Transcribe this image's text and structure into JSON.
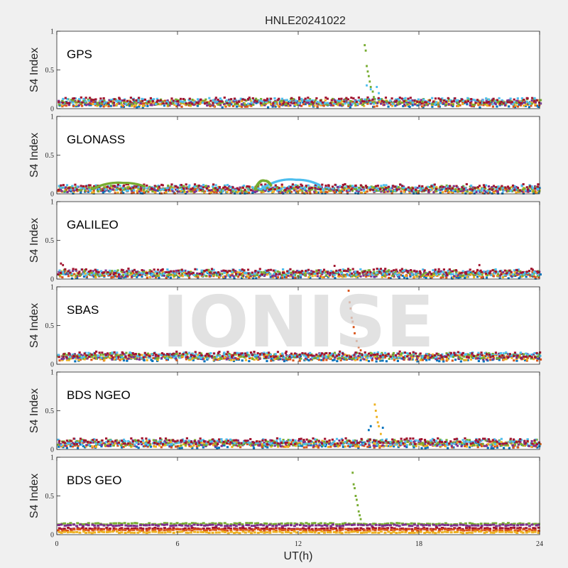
{
  "title": "HNLE20241022",
  "watermark": "IONISE",
  "xlabel": "UT(h)",
  "xlim": [
    0,
    24
  ],
  "xticks": [
    0,
    6,
    12,
    18,
    24
  ],
  "ylim": [
    0,
    1
  ],
  "yticks": [
    "0",
    "0.5",
    "1"
  ],
  "series_colors": [
    "#0072BD",
    "#D95319",
    "#EDB120",
    "#7E2F8E",
    "#77AC30",
    "#4DBEEE",
    "#A2142F"
  ],
  "chart_data": [
    {
      "type": "scatter",
      "panel_label": "GPS",
      "ylabel": "S4 Index",
      "ylim": [
        0,
        1
      ],
      "baseline": 0.08,
      "spikes": [
        {
          "x": [
            15.3,
            15.35,
            15.4,
            15.45,
            15.5,
            15.55,
            15.6,
            15.7,
            15.75,
            15.8
          ],
          "y": [
            0.82,
            0.75,
            0.55,
            0.48,
            0.42,
            0.35,
            0.28,
            0.22,
            0.15,
            0.12
          ],
          "color": "#77AC30"
        },
        {
          "x": [
            15.4,
            15.6,
            15.9,
            16.0
          ],
          "y": [
            0.3,
            0.25,
            0.28,
            0.2
          ],
          "color": "#4DBEEE"
        }
      ]
    },
    {
      "type": "scatter",
      "panel_label": "GLONASS",
      "ylabel": "S4 Index",
      "ylim": [
        0,
        1
      ],
      "baseline": 0.06,
      "arcs": [
        {
          "x0": 1.7,
          "x1": 4.3,
          "peak": 0.18,
          "color": "#77AC30"
        },
        {
          "x0": 10.1,
          "x1": 13.0,
          "peak": 0.24,
          "color": "#4DBEEE"
        },
        {
          "x0": 9.8,
          "x1": 10.6,
          "peak": 0.22,
          "color": "#77AC30"
        }
      ]
    },
    {
      "type": "scatter",
      "panel_label": "GALILEO",
      "ylabel": "S4 Index",
      "ylim": [
        0,
        1
      ],
      "baseline": 0.07,
      "spikes": [
        {
          "x": [
            0.2,
            0.3,
            13.8,
            21.0
          ],
          "y": [
            0.2,
            0.18,
            0.17,
            0.18
          ],
          "color": "#A2142F"
        }
      ]
    },
    {
      "type": "scatter",
      "panel_label": "SBAS",
      "ylabel": "S4 Index",
      "ylim": [
        0,
        1
      ],
      "baseline": 0.1,
      "spikes": [
        {
          "x": [
            14.5,
            14.55,
            14.6,
            14.65,
            14.7,
            14.75,
            14.8,
            14.9,
            15.0,
            15.1
          ],
          "y": [
            0.95,
            0.8,
            0.72,
            0.6,
            0.55,
            0.48,
            0.4,
            0.3,
            0.22,
            0.18
          ],
          "color": "#D95319"
        }
      ]
    },
    {
      "type": "scatter",
      "panel_label": "BDS NGEO",
      "ylabel": "S4 Index",
      "ylim": [
        0,
        1
      ],
      "baseline": 0.08,
      "spikes": [
        {
          "x": [
            15.8,
            15.85,
            15.9,
            15.95,
            16.0,
            16.1
          ],
          "y": [
            0.58,
            0.5,
            0.42,
            0.35,
            0.3,
            0.2
          ],
          "color": "#EDB120"
        },
        {
          "x": [
            15.5,
            15.6,
            16.2
          ],
          "y": [
            0.25,
            0.3,
            0.28
          ],
          "color": "#0072BD"
        }
      ]
    },
    {
      "type": "scatter",
      "panel_label": "BDS GEO",
      "ylabel": "S4 Index",
      "ylim": [
        0,
        1
      ],
      "baseline": 0.1,
      "flat_lines": [
        {
          "y": 0.14,
          "color": "#77AC30"
        },
        {
          "y": 0.12,
          "color": "#7E2F8E"
        },
        {
          "y": 0.08,
          "color": "#A2142F"
        },
        {
          "y": 0.06,
          "color": "#D95319"
        },
        {
          "y": 0.03,
          "color": "#EDB120"
        }
      ],
      "spikes": [
        {
          "x": [
            14.7,
            14.75,
            14.8,
            14.85,
            14.9,
            14.95,
            15.0,
            15.05,
            15.1
          ],
          "y": [
            0.8,
            0.65,
            0.6,
            0.5,
            0.45,
            0.38,
            0.3,
            0.25,
            0.2
          ],
          "color": "#77AC30"
        }
      ]
    }
  ]
}
